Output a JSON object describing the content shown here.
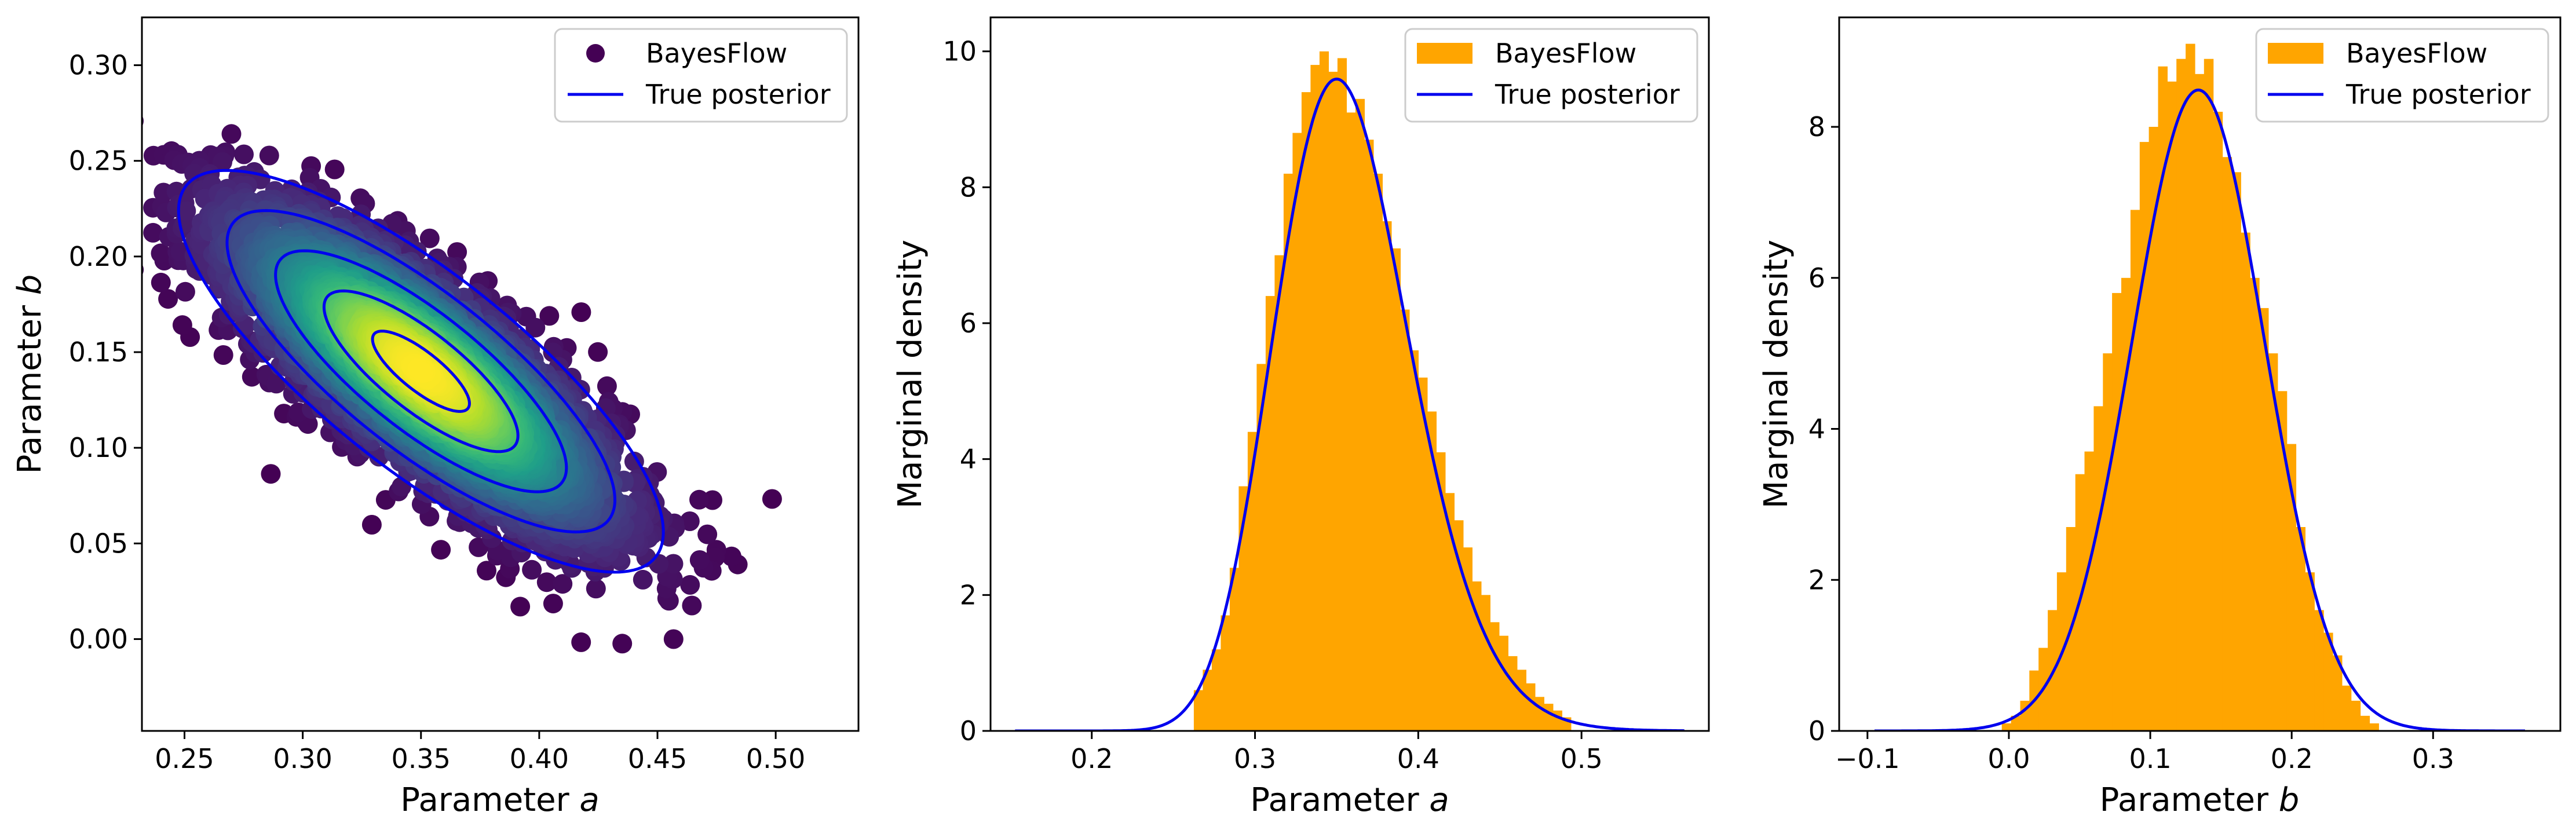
{
  "colors": {
    "hist": "#ffa500",
    "line": "#0000ee",
    "scatter_low": "#440154",
    "scatter_high": "#fde725",
    "axes": "#000000"
  },
  "chart_data": [
    {
      "type": "scatter",
      "xlabel": "Parameter a",
      "ylabel": "Parameter b",
      "xlim": [
        0.232,
        0.535
      ],
      "ylim": [
        -0.048,
        0.325
      ],
      "xticks": [
        "0.25",
        "0.30",
        "0.35",
        "0.40",
        "0.45",
        "0.50"
      ],
      "yticks": [
        "0.00",
        "0.05",
        "0.10",
        "0.15",
        "0.20",
        "0.25",
        "0.30"
      ],
      "legend": {
        "position": "top-right",
        "entries": [
          "BayesFlow",
          "True posterior"
        ]
      },
      "posterior_contours": {
        "center": [
          0.35,
          0.14
        ],
        "sd_a": 0.041,
        "sd_b": 0.042,
        "correlation": -0.8,
        "levels": [
          0.5,
          1.0,
          1.5,
          2.0,
          2.5
        ]
      },
      "scatter_density_colormap": "viridis",
      "samples_shown": 4200,
      "grid": false
    },
    {
      "type": "bar",
      "subtype": "histogram",
      "xlabel": "Parameter a",
      "ylabel": "Marginal density",
      "xlim": [
        0.138,
        0.578
      ],
      "ylim": [
        0,
        10.5
      ],
      "xticks": [
        "0.2",
        "0.3",
        "0.4",
        "0.5"
      ],
      "yticks": [
        "0",
        "2",
        "4",
        "6",
        "8",
        "10"
      ],
      "legend": {
        "position": "top-right",
        "entries": [
          "BayesFlow",
          "True posterior"
        ]
      },
      "bin_start": 0.2625,
      "bin_width": 0.0055,
      "values": [
        0.6,
        0.9,
        1.2,
        1.7,
        2.4,
        3.6,
        4.4,
        5.4,
        6.4,
        7.0,
        8.2,
        8.8,
        9.4,
        9.8,
        10.0,
        9.7,
        9.9,
        9.1,
        9.3,
        8.7,
        8.2,
        7.5,
        7.1,
        6.2,
        5.6,
        5.2,
        4.7,
        4.1,
        3.5,
        3.1,
        2.7,
        2.2,
        2.0,
        1.6,
        1.4,
        1.1,
        0.9,
        0.7,
        0.5,
        0.4,
        0.3,
        0.2
      ],
      "true_posterior": {
        "distribution": "lognormal",
        "mode": 0.35,
        "sigma": 0.118,
        "x_range": [
          0.153,
          0.563
        ]
      },
      "grid": false
    },
    {
      "type": "bar",
      "subtype": "histogram",
      "xlabel": "Parameter b",
      "ylabel": "Marginal density",
      "xlim": [
        -0.12,
        0.39
      ],
      "ylim": [
        0,
        9.45
      ],
      "xticks": [
        "−0.1",
        "0.0",
        "0.1",
        "0.2",
        "0.3"
      ],
      "yticks": [
        "0",
        "2",
        "4",
        "6",
        "8"
      ],
      "legend": {
        "position": "top-right",
        "entries": [
          "BayesFlow",
          "True posterior"
        ]
      },
      "bin_start": -0.005,
      "bin_width": 0.0065,
      "values": [
        0.1,
        0.2,
        0.4,
        0.8,
        1.1,
        1.6,
        2.1,
        2.7,
        3.4,
        3.7,
        4.3,
        5.0,
        5.8,
        6.0,
        6.9,
        7.8,
        8.0,
        8.8,
        8.6,
        8.9,
        9.1,
        8.7,
        8.9,
        8.2,
        7.6,
        7.4,
        6.6,
        6.0,
        5.6,
        5.0,
        4.5,
        3.8,
        2.7,
        2.1,
        1.6,
        1.3,
        1.0,
        0.6,
        0.4,
        0.2,
        0.1
      ],
      "true_posterior": {
        "distribution": "normal",
        "mean": 0.134,
        "sd": 0.047,
        "x_range": [
          -0.095,
          0.365
        ]
      },
      "grid": false
    }
  ]
}
